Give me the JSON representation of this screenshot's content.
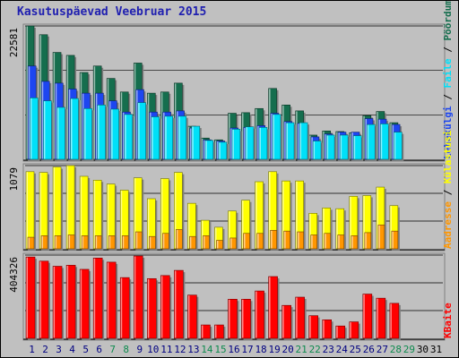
{
  "title": "Kasutuspäevad Veebruar 2015",
  "colors": {
    "visits": "#156e4e",
    "pages": "#1d46f0",
    "files": "#00e0f8",
    "hits": "#ffff00",
    "sites": "#ff9600",
    "kbytes": "#ff0000",
    "weekend_day": "#0d8a4e",
    "weekday": "#000080",
    "future_day": "#000000"
  },
  "chart_data": [
    {
      "type": "bar",
      "ylabel_max": "22581",
      "ylim": [
        0,
        22581
      ],
      "categories": [
        "1",
        "2",
        "3",
        "4",
        "5",
        "6",
        "7",
        "8",
        "9",
        "10",
        "11",
        "12",
        "13",
        "14",
        "15",
        "16",
        "17",
        "18",
        "19",
        "20",
        "21",
        "22",
        "23",
        "24",
        "25",
        "26",
        "27",
        "28",
        "29",
        "30",
        "31"
      ],
      "legend": [
        {
          "label": "Pöördumisi",
          "color_key": "visits"
        },
        {
          "label": "Faile",
          "color_key": "files"
        },
        {
          "label": "Lehekülgi",
          "color_key": "pages"
        }
      ],
      "series": [
        {
          "name": "Pöördumisi",
          "color_key": "visits",
          "values": [
            22581,
            21100,
            18100,
            17600,
            14700,
            15800,
            13700,
            11400,
            16300,
            11200,
            11400,
            12900,
            5600,
            3600,
            3300,
            7800,
            7900,
            8600,
            12000,
            9200,
            8200,
            4100,
            4800,
            4700,
            4500,
            7400,
            8100,
            6200,
            null,
            null,
            null
          ]
        },
        {
          "name": "Lehekülgi",
          "color_key": "pages",
          "values": [
            15800,
            13200,
            12900,
            11900,
            11200,
            11200,
            9900,
            8000,
            11800,
            8000,
            8000,
            8200,
            5300,
            3300,
            3100,
            5300,
            5400,
            5700,
            7800,
            6400,
            6100,
            3800,
            4300,
            4600,
            4600,
            6900,
            6800,
            5900,
            null,
            null,
            null
          ]
        },
        {
          "name": "Faile",
          "color_key": "files",
          "values": [
            10400,
            9900,
            8800,
            10300,
            8600,
            9200,
            8500,
            7600,
            9600,
            7200,
            7300,
            7300,
            5600,
            3200,
            2900,
            5100,
            5500,
            5400,
            7600,
            6200,
            6200,
            3100,
            4100,
            4100,
            4000,
            5900,
            6000,
            4600,
            null,
            null,
            null
          ]
        }
      ]
    },
    {
      "type": "bar",
      "ylabel_max": "1079",
      "ylim": [
        0,
        1079
      ],
      "categories": [
        "1",
        "2",
        "3",
        "4",
        "5",
        "6",
        "7",
        "8",
        "9",
        "10",
        "11",
        "12",
        "13",
        "14",
        "15",
        "16",
        "17",
        "18",
        "19",
        "20",
        "21",
        "22",
        "23",
        "24",
        "25",
        "26",
        "27",
        "28",
        "29",
        "30",
        "31"
      ],
      "legend": [
        {
          "label": "Külastusi",
          "color_key": "hits"
        },
        {
          "label": "Aadresse",
          "color_key": "sites"
        }
      ],
      "series": [
        {
          "name": "Külastusi",
          "color_key": "hits",
          "values": [
            1000,
            990,
            1060,
            1079,
            940,
            890,
            840,
            760,
            920,
            650,
            910,
            990,
            590,
            370,
            280,
            490,
            630,
            870,
            1000,
            880,
            880,
            460,
            530,
            520,
            680,
            690,
            800,
            560,
            null,
            null,
            null
          ]
        },
        {
          "name": "Aadresse",
          "color_key": "sites",
          "values": [
            150,
            170,
            170,
            180,
            170,
            170,
            170,
            170,
            220,
            160,
            200,
            250,
            160,
            170,
            110,
            140,
            200,
            200,
            240,
            230,
            220,
            180,
            200,
            180,
            170,
            210,
            310,
            230,
            null,
            null,
            null
          ]
        }
      ]
    },
    {
      "type": "bar",
      "ylabel_max": "404326",
      "ylim": [
        0,
        404326
      ],
      "categories": [
        "1",
        "2",
        "3",
        "4",
        "5",
        "6",
        "7",
        "8",
        "9",
        "10",
        "11",
        "12",
        "13",
        "14",
        "15",
        "16",
        "17",
        "18",
        "19",
        "20",
        "21",
        "22",
        "23",
        "24",
        "25",
        "26",
        "27",
        "28",
        "29",
        "30",
        "31"
      ],
      "legend": [
        {
          "label": "KBaite",
          "color_key": "kbytes"
        }
      ],
      "series": [
        {
          "name": "KBaite",
          "color_key": "kbytes",
          "values": [
            395000,
            375000,
            350000,
            355000,
            335000,
            390000,
            370000,
            295000,
            400000,
            290000,
            305000,
            330000,
            210000,
            65000,
            65000,
            190000,
            190000,
            230000,
            300000,
            160000,
            200000,
            110000,
            90000,
            60000,
            80000,
            215000,
            195000,
            170000,
            null,
            null,
            null
          ]
        }
      ]
    }
  ],
  "x_day_colors": [
    "weekday",
    "weekday",
    "weekday",
    "weekday",
    "weekday",
    "weekday",
    "weekend_day",
    "weekend_day",
    "weekday",
    "weekday",
    "weekday",
    "weekday",
    "weekday",
    "weekend_day",
    "weekend_day",
    "weekday",
    "weekday",
    "weekday",
    "weekday",
    "weekday",
    "weekend_day",
    "weekend_day",
    "weekday",
    "weekday",
    "weekday",
    "weekday",
    "weekday",
    "weekend_day",
    "weekend_day",
    "future_day",
    "future_day"
  ]
}
